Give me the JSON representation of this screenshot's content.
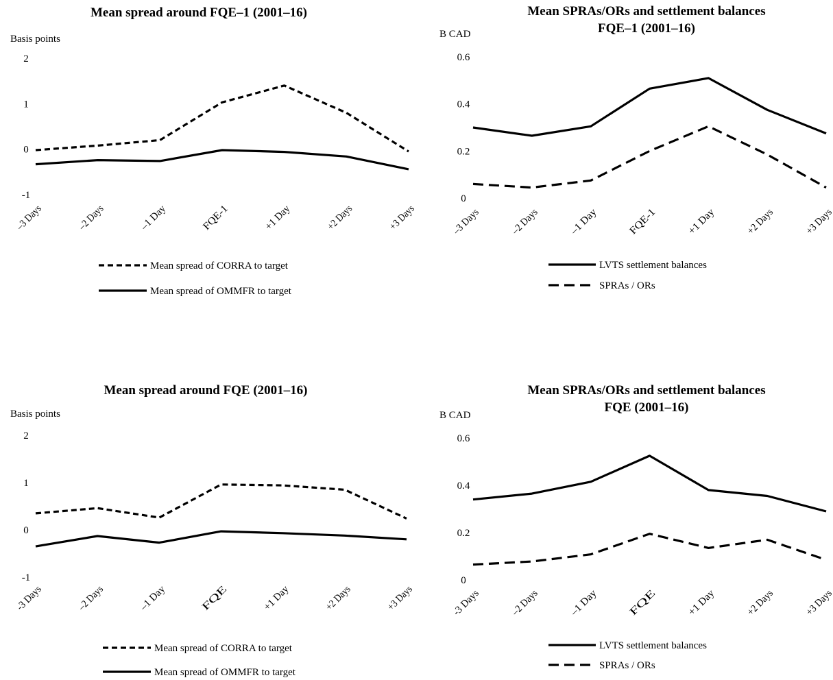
{
  "chart_data": [
    {
      "type": "line",
      "title": "Mean spread around FQE–1  (2001–16)",
      "title_lines": [
        "Mean spread around FQE–1  (2001–16)"
      ],
      "ylabel": "Basis points",
      "ylim": [
        -1,
        2
      ],
      "yticks": [
        "-1",
        "0",
        "1",
        "2"
      ],
      "categories": [
        "–3 Days",
        "–2 Days",
        "–1 Day",
        "FQE-1",
        "+1 Day",
        "+2 Days",
        "+3 Days"
      ],
      "series": [
        {
          "name": "Mean spread of CORRA to target",
          "style": "short-dash",
          "values": [
            -0.02,
            0.08,
            0.2,
            1.03,
            1.4,
            0.8,
            -0.05
          ]
        },
        {
          "name": "Mean spread of OMMFR to target",
          "style": "solid",
          "values": [
            -0.33,
            -0.24,
            -0.26,
            -0.02,
            -0.06,
            -0.16,
            -0.44
          ]
        }
      ],
      "grid": false,
      "legend": "bottom",
      "colors": {
        "line": "#000000"
      }
    },
    {
      "type": "line",
      "title": "Mean SPRAs/ORs and settlement balances FQE–1  (2001–16)",
      "title_lines": [
        "Mean SPRAs/ORs and settlement balances",
        "FQE–1  (2001–16)"
      ],
      "ylabel": "B CAD",
      "ylim": [
        0,
        0.6
      ],
      "yticks": [
        "0",
        "0.2",
        "0.4",
        "0.6"
      ],
      "categories": [
        "–3 Days",
        "–2 Days",
        "–1 Day",
        "FQE-1",
        "+1 Day",
        "+2 Days",
        "+3 Days"
      ],
      "series": [
        {
          "name": "LVTS settlement balances",
          "style": "solid",
          "values": [
            0.3,
            0.265,
            0.305,
            0.465,
            0.51,
            0.375,
            0.275
          ]
        },
        {
          "name": "SPRAs / ORs",
          "style": "long-dash",
          "values": [
            0.06,
            0.045,
            0.075,
            0.2,
            0.305,
            0.185,
            0.045
          ]
        }
      ],
      "grid": false,
      "legend": "bottom",
      "colors": {
        "line": "#000000"
      }
    },
    {
      "type": "line",
      "title": "Mean spread around FQE  (2001–16)",
      "title_lines": [
        "Mean spread around FQE  (2001–16)"
      ],
      "ylabel": "Basis points",
      "ylim": [
        -1,
        2
      ],
      "yticks": [
        "-1",
        "0",
        "1",
        "2"
      ],
      "categories": [
        "-3 Days",
        "–2 Days",
        "–1 Day",
        "FQE",
        "+1 Day",
        "+2 Days",
        "+3 Days"
      ],
      "series": [
        {
          "name": "Mean spread of CORRA to target",
          "style": "short-dash",
          "values": [
            0.35,
            0.46,
            0.26,
            0.96,
            0.94,
            0.85,
            0.24
          ]
        },
        {
          "name": "Mean spread of OMMFR to target",
          "style": "solid",
          "values": [
            -0.35,
            -0.13,
            -0.27,
            -0.03,
            -0.07,
            -0.12,
            -0.2
          ]
        }
      ],
      "grid": false,
      "legend": "bottom",
      "colors": {
        "line": "#000000"
      }
    },
    {
      "type": "line",
      "title": "Mean SPRAs/ORs and settlement balances FQE  (2001–16)",
      "title_lines": [
        "Mean SPRAs/ORs and settlement balances",
        "FQE  (2001–16)"
      ],
      "ylabel": "B CAD",
      "ylim": [
        0,
        0.6
      ],
      "yticks": [
        "0",
        "0.2",
        "0.4",
        "0.6"
      ],
      "categories": [
        "-3 Days",
        "–2 Days",
        "–1 Day",
        "FQE",
        "+1 Day",
        "+2 Days",
        "+3 Days"
      ],
      "series": [
        {
          "name": "LVTS settlement balances",
          "style": "solid",
          "values": [
            0.34,
            0.365,
            0.415,
            0.525,
            0.38,
            0.355,
            0.29
          ]
        },
        {
          "name": "SPRAs / ORs",
          "style": "long-dash",
          "values": [
            0.065,
            0.078,
            0.108,
            0.195,
            0.135,
            0.17,
            0.085
          ]
        }
      ],
      "grid": false,
      "legend": "bottom",
      "colors": {
        "line": "#000000"
      }
    }
  ]
}
